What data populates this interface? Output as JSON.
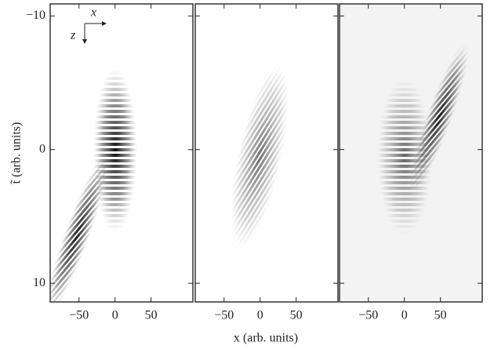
{
  "chart_data": {
    "type": "heatmap",
    "xlabel": "x (arb. units)",
    "ylabel": "t̃ (arb. units)",
    "inset_x_label": "x",
    "inset_z_label": "z",
    "ylim": [
      -10.9,
      11.4
    ],
    "yticks": [
      {
        "value": -10,
        "label": "−10"
      },
      0,
      10
    ],
    "panels": [
      {
        "xlim": [
          -90,
          108
        ],
        "xticks": [
          {
            "value": -50,
            "label": "−50"
          },
          0,
          50
        ]
      },
      {
        "xlim": [
          -90,
          108
        ],
        "xticks": [
          {
            "value": -50,
            "label": "−50"
          },
          0,
          50
        ]
      },
      {
        "xlim": [
          -90,
          108
        ],
        "xticks": [
          {
            "value": -50,
            "label": "−50"
          },
          0,
          50
        ]
      }
    ]
  }
}
